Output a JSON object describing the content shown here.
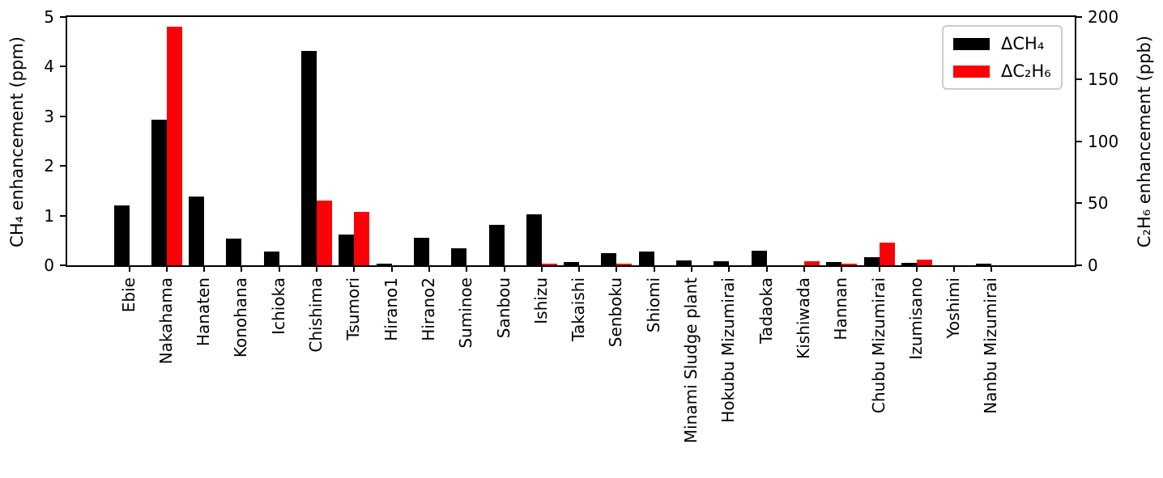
{
  "chart_data": {
    "type": "bar",
    "title": "",
    "categories": [
      "Ebie",
      "Nakahama",
      "Hanaten",
      "Konohana",
      "Ichioka",
      "Chishima",
      "Tsumori",
      "Hirano1",
      "Hirano2",
      "Suminoe",
      "Sanbou",
      "Ishizu",
      "Takaishi",
      "Senboku",
      "Shiomi",
      "Minami Sludge plant",
      "Hokubu Mizumirai",
      "Tadaoka",
      "Kishiwada",
      "Hannan",
      "Chubu Mizumirai",
      "Izumisano",
      "Yoshimi",
      "Nanbu Mizumirai"
    ],
    "series": [
      {
        "name": "ΔCH₄",
        "axis": "left",
        "unit": "ppm",
        "color": "#000000",
        "values": [
          1.21,
          2.93,
          1.39,
          0.54,
          0.27,
          4.31,
          0.62,
          0.03,
          0.55,
          0.34,
          0.81,
          1.02,
          0.07,
          0.25,
          0.28,
          0.09,
          0.08,
          0.29,
          0,
          0.06,
          0.17,
          0.05,
          0,
          0.04
        ]
      },
      {
        "name": "ΔC₂H₆",
        "axis": "right",
        "unit": "ppb",
        "color": "#fb0007",
        "values": [
          0,
          192,
          0,
          0,
          0,
          52,
          43,
          0,
          0,
          0,
          0,
          1,
          0,
          1,
          0,
          0,
          0,
          0,
          3,
          1,
          18.5,
          4.5,
          0,
          0
        ]
      }
    ],
    "ylabel_left": "CH₄ enhancement (ppm)",
    "ylabel_right": "C₂H₆ enhancement (ppb)",
    "ylim_left": [
      0,
      5
    ],
    "ylim_right": [
      0,
      200
    ],
    "yticks_left": [
      "0",
      "1",
      "2",
      "3",
      "4",
      "5"
    ],
    "yticks_right": [
      "0",
      "50",
      "100",
      "150",
      "200"
    ],
    "grid": false,
    "legend_position": "top-right"
  }
}
